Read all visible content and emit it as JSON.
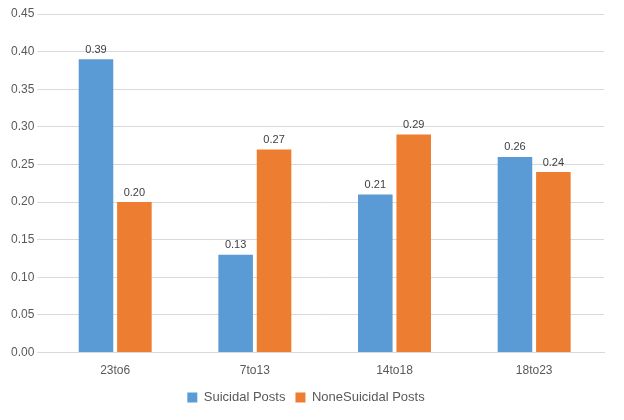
{
  "chart_data": {
    "type": "bar",
    "categories": [
      "23to6",
      "7to13",
      "14to18",
      "18to23"
    ],
    "series": [
      {
        "name": "Suicidal Posts",
        "color": "#5b9bd5",
        "values": [
          0.39,
          0.13,
          0.21,
          0.26
        ],
        "value_labels": [
          "0.39",
          "0.13",
          "0.21",
          "0.26"
        ]
      },
      {
        "name": "NoneSuicidal Posts",
        "color": "#ed7d31",
        "values": [
          0.2,
          0.27,
          0.29,
          0.24
        ],
        "value_labels": [
          "0.20",
          "0.27",
          "0.29",
          "0.24"
        ]
      }
    ],
    "ylim": [
      0,
      0.45
    ],
    "yticks": [
      {
        "value": 0,
        "label": "0.00"
      },
      {
        "value": 0.05,
        "label": "0.05"
      },
      {
        "value": 0.1,
        "label": "0.10"
      },
      {
        "value": 0.15,
        "label": "0.15"
      },
      {
        "value": 0.2,
        "label": "0.20"
      },
      {
        "value": 0.25,
        "label": "0.25"
      },
      {
        "value": 0.3,
        "label": "0.30"
      },
      {
        "value": 0.35,
        "label": "0.35"
      },
      {
        "value": 0.4,
        "label": "0.40"
      },
      {
        "value": 0.45,
        "label": "0.45"
      }
    ],
    "grid": true,
    "legend": "bottom",
    "data_labels": true
  }
}
